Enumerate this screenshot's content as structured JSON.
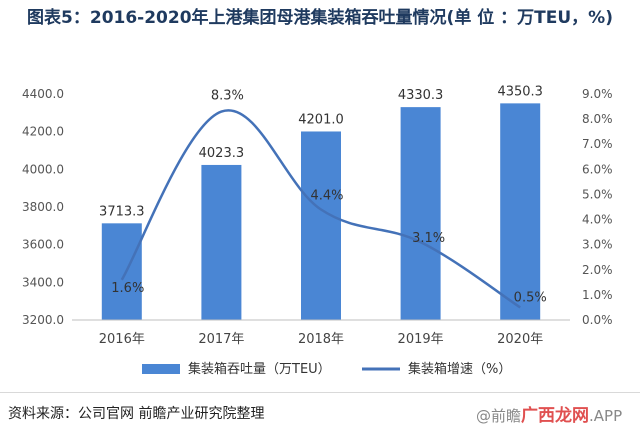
{
  "chart_data": {
    "type": "bar",
    "title": "图表5：2016-2020年上港集团母港集装箱吞吐量情况(单 位 ：万TEU，%)",
    "categories": [
      "2016年",
      "2017年",
      "2018年",
      "2019年",
      "2020年"
    ],
    "bar_labels": [
      "3713.3",
      "4023.3",
      "4201.0",
      "4330.3",
      "4350.3"
    ],
    "line_labels": [
      "1.6%",
      "8.3%",
      "4.4%",
      "3.1%",
      "0.5%"
    ],
    "left_ticks": [
      "3200.0",
      "3400.0",
      "3600.0",
      "3800.0",
      "4000.0",
      "4200.0",
      "4400.0"
    ],
    "right_ticks": [
      "0.0%",
      "1.0%",
      "2.0%",
      "3.0%",
      "4.0%",
      "5.0%",
      "6.0%",
      "7.0%",
      "8.0%",
      "9.0%"
    ],
    "series": [
      {
        "name": "集装箱吞吐量（万TEU）",
        "type": "bar",
        "axis": "left",
        "values": [
          3713.3,
          4023.3,
          4201.0,
          4330.3,
          4350.3
        ],
        "color": "#4a86d4"
      },
      {
        "name": "集装箱增速（%）",
        "type": "line",
        "axis": "right",
        "values": [
          1.6,
          8.3,
          4.4,
          3.1,
          0.5
        ],
        "color": "#4472b8"
      }
    ],
    "left_ylim": [
      3200,
      4400
    ],
    "right_ylim": [
      0,
      9
    ],
    "grid": false,
    "legend_position": "bottom"
  },
  "footer": {
    "source": "资料来源：公司官网 前瞻产业研究院整理",
    "watermark_prefix": "@前瞻",
    "watermark_brand": "广西龙网",
    "watermark_suffix": ".APP"
  }
}
